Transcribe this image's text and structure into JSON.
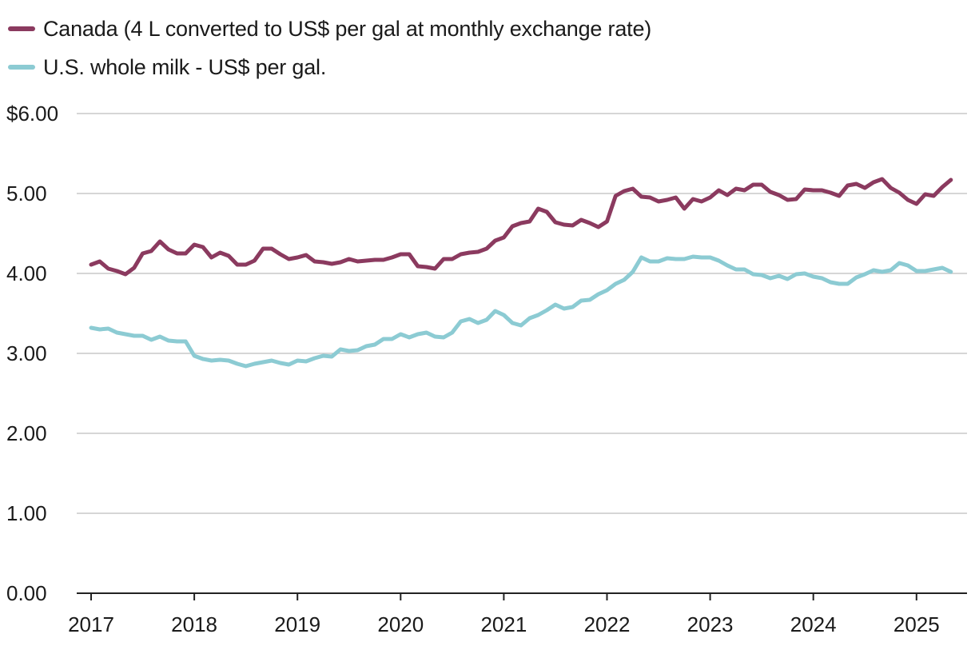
{
  "chart_data": {
    "type": "line",
    "title": "",
    "xlabel": "",
    "ylabel": "",
    "ylim": [
      0,
      6
    ],
    "yticks": [
      0,
      1,
      2,
      3,
      4,
      5,
      6
    ],
    "ytick_labels": [
      "0.00",
      "1.00",
      "2.00",
      "3.00",
      "4.00",
      "5.00",
      "$6.00"
    ],
    "xlim": [
      2017,
      2025.5
    ],
    "xticks": [
      2017,
      2018,
      2019,
      2020,
      2021,
      2022,
      2023,
      2024,
      2025
    ],
    "xtick_labels": [
      "2017",
      "2018",
      "2019",
      "2020",
      "2021",
      "2022",
      "2023",
      "2024",
      "2025"
    ],
    "grid": "horizontal",
    "legend": "top-left",
    "x_start": 2017,
    "x_step": 0.083333,
    "series": [
      {
        "name": "Canada (4 L converted to US$ per gal at monthly exchange rate)",
        "color": "#8b3a5f",
        "values": [
          4.11,
          4.15,
          4.06,
          4.03,
          3.99,
          4.07,
          4.25,
          4.28,
          4.4,
          4.3,
          4.25,
          4.25,
          4.36,
          4.33,
          4.2,
          4.26,
          4.22,
          4.11,
          4.11,
          4.16,
          4.31,
          4.31,
          4.24,
          4.18,
          4.2,
          4.23,
          4.15,
          4.14,
          4.12,
          4.14,
          4.18,
          4.15,
          4.16,
          4.17,
          4.17,
          4.2,
          4.24,
          4.24,
          4.09,
          4.08,
          4.06,
          4.18,
          4.18,
          4.24,
          4.26,
          4.27,
          4.31,
          4.41,
          4.45,
          4.59,
          4.63,
          4.65,
          4.81,
          4.77,
          4.64,
          4.61,
          4.6,
          4.67,
          4.63,
          4.58,
          4.65,
          4.97,
          5.03,
          5.06,
          4.96,
          4.95,
          4.9,
          4.92,
          4.95,
          4.81,
          4.93,
          4.9,
          4.95,
          5.04,
          4.98,
          5.06,
          5.04,
          5.11,
          5.11,
          5.02,
          4.98,
          4.92,
          4.93,
          5.05,
          5.04,
          5.04,
          5.01,
          4.97,
          5.1,
          5.12,
          5.07,
          5.14,
          5.18,
          5.07,
          5.01,
          4.92,
          4.87,
          4.99,
          4.97,
          5.08,
          5.17
        ]
      },
      {
        "name": "U.S. whole milk - US$ per gal.",
        "color": "#8ccbd3",
        "values": [
          3.32,
          3.3,
          3.31,
          3.26,
          3.24,
          3.22,
          3.22,
          3.17,
          3.21,
          3.16,
          3.15,
          3.15,
          2.97,
          2.93,
          2.91,
          2.92,
          2.91,
          2.87,
          2.84,
          2.87,
          2.89,
          2.91,
          2.88,
          2.86,
          2.91,
          2.9,
          2.94,
          2.97,
          2.96,
          3.05,
          3.03,
          3.04,
          3.09,
          3.11,
          3.18,
          3.18,
          3.24,
          3.2,
          3.24,
          3.26,
          3.21,
          3.2,
          3.26,
          3.4,
          3.43,
          3.38,
          3.42,
          3.53,
          3.48,
          3.38,
          3.35,
          3.44,
          3.48,
          3.54,
          3.61,
          3.56,
          3.58,
          3.66,
          3.67,
          3.74,
          3.79,
          3.87,
          3.92,
          4.02,
          4.2,
          4.15,
          4.15,
          4.19,
          4.18,
          4.18,
          4.21,
          4.2,
          4.2,
          4.16,
          4.1,
          4.05,
          4.05,
          3.99,
          3.98,
          3.94,
          3.97,
          3.93,
          3.99,
          4.0,
          3.96,
          3.94,
          3.89,
          3.87,
          3.87,
          3.95,
          3.99,
          4.04,
          4.02,
          4.04,
          4.13,
          4.1,
          4.03,
          4.03,
          4.05,
          4.07,
          4.02
        ]
      }
    ]
  }
}
